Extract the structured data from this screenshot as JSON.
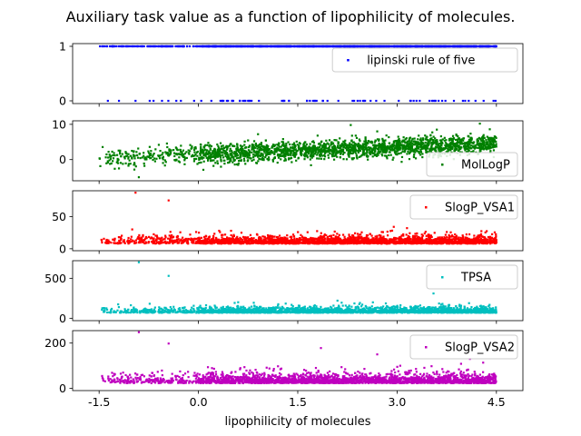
{
  "chart_data": {
    "type": "scatter",
    "title": "Auxiliary task value as a function of lipophilicity of molecules.",
    "xlabel": "lipophilicity of molecules",
    "xlim": [
      -1.9,
      4.9
    ],
    "x_ticks": [
      -1.5,
      0.0,
      1.5,
      3.0,
      4.5
    ],
    "x_tick_labels": [
      "-1.5",
      "0.0",
      "1.5",
      "3.0",
      "4.5"
    ],
    "x_range_points": [
      -1.5,
      4.5
    ],
    "colors": {
      "lipinski rule of five": "#0000ff",
      "MolLogP": "#008000",
      "SlogP_VSA1": "#ff0000",
      "TPSA": "#00bfbf",
      "SlogP_VSA2": "#bf00bf"
    },
    "panels": [
      {
        "series_name": "lipinski rule of five",
        "color": "#0000ff",
        "ylim": [
          -0.05,
          1.05
        ],
        "y_ticks": [
          0,
          1
        ],
        "y_tick_labels": [
          "0",
          "1"
        ],
        "distribution": {
          "kind": "binary",
          "p_one": 0.93,
          "n": 1100
        },
        "outliers": [
          [
            -1.2,
            0
          ],
          [
            -0.95,
            0
          ],
          [
            -0.55,
            0
          ]
        ]
      },
      {
        "series_name": "MolLogP",
        "color": "#008000",
        "ylim": [
          -6,
          11
        ],
        "y_ticks": [
          0,
          10
        ],
        "y_tick_labels": [
          "0",
          "10"
        ],
        "distribution": {
          "kind": "trend",
          "y_at_xmin": 0.5,
          "y_at_xmax": 4.5,
          "spread": 1.3,
          "n": 2200
        },
        "outliers": [
          [
            -1.2,
            -2.5
          ],
          [
            -0.9,
            -5
          ],
          [
            0.9,
            7.2
          ],
          [
            1.8,
            6.8
          ],
          [
            2.3,
            9.8
          ],
          [
            2.7,
            8.0
          ],
          [
            3.2,
            6.2
          ],
          [
            3.6,
            8.5
          ],
          [
            4.25,
            10.2
          ],
          [
            4.4,
            8.6
          ],
          [
            0.6,
            -1.5
          ],
          [
            1.7,
            -1.6
          ]
        ]
      },
      {
        "series_name": "SlogP_VSA1",
        "color": "#ff0000",
        "ylim": [
          -3,
          90
        ],
        "y_ticks": [
          0,
          50
        ],
        "y_tick_labels": [
          "0",
          "50"
        ],
        "distribution": {
          "kind": "noise",
          "center": 10,
          "spread": 7,
          "n": 2400
        },
        "outliers": [
          [
            -0.95,
            87
          ],
          [
            -0.45,
            75
          ],
          [
            2.95,
            34
          ],
          [
            3.15,
            32
          ],
          [
            -1.0,
            30
          ]
        ]
      },
      {
        "series_name": "TPSA",
        "color": "#00bfbf",
        "ylim": [
          -30,
          720
        ],
        "y_ticks": [
          0,
          500
        ],
        "y_tick_labels": [
          "0",
          "500"
        ],
        "distribution": {
          "kind": "noise",
          "center": 80,
          "spread": 40,
          "n": 2400
        },
        "outliers": [
          [
            -0.9,
            700
          ],
          [
            -0.45,
            530
          ],
          [
            3.55,
            310
          ],
          [
            2.1,
            220
          ],
          [
            0.6,
            200
          ]
        ]
      },
      {
        "series_name": "SlogP_VSA2",
        "color": "#bf00bf",
        "ylim": [
          -10,
          255
        ],
        "y_ticks": [
          0,
          200
        ],
        "y_tick_labels": [
          "0",
          "200"
        ],
        "distribution": {
          "kind": "noise",
          "center": 30,
          "spread": 25,
          "n": 2400
        },
        "outliers": [
          [
            -0.9,
            248
          ],
          [
            -0.45,
            198
          ],
          [
            1.85,
            178
          ],
          [
            2.7,
            150
          ],
          [
            4.1,
            130
          ]
        ]
      }
    ]
  }
}
